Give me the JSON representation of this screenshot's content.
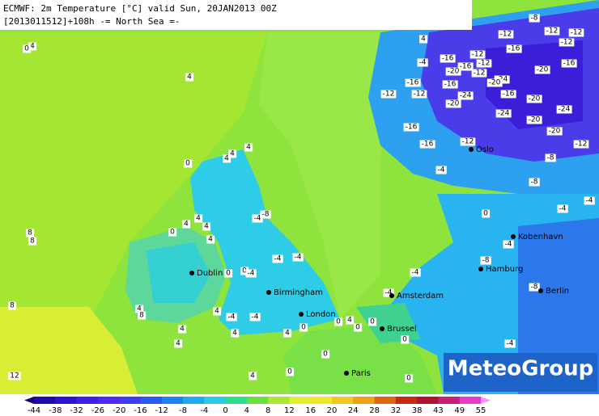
{
  "header": {
    "title": "ECMWF: 2m Temperature [°C] valid Sun, 20JAN2013 00Z",
    "subtitle": "[2013011512]+108h  -= North Sea =-"
  },
  "cities": [
    "Oslo",
    "Kobenhavn",
    "Hamburg",
    "Berlin",
    "Amsterdam",
    "Brussel",
    "Paris",
    "London",
    "Birmingham",
    "Dublin"
  ],
  "contour_labels": [
    -8,
    -12,
    -12,
    -12,
    -16,
    -12,
    -12,
    -16,
    -4,
    -12,
    -16,
    -12,
    -20,
    -16,
    -24,
    -20,
    -20,
    -16,
    -16,
    -12,
    -12,
    -24,
    -20,
    -16,
    -20,
    -24,
    -24,
    -20,
    -20,
    -16,
    -16,
    -12,
    -12,
    -8,
    -4,
    -8,
    -4,
    -4,
    0,
    -4,
    -8,
    -8,
    -4,
    -4,
    -4,
    0,
    4,
    0,
    0,
    0,
    0,
    0,
    4,
    0,
    4,
    4,
    -4,
    4,
    -4,
    0,
    -4,
    -4,
    -4,
    -4,
    -8,
    0,
    4,
    4,
    4,
    0,
    4,
    0,
    4,
    4,
    4,
    4,
    4,
    4,
    0,
    8,
    8,
    8,
    4,
    8,
    4,
    4,
    12,
    0
  ],
  "legend": {
    "ticks": [
      -44,
      -38,
      -32,
      -26,
      -20,
      -16,
      -12,
      -8,
      -4,
      0,
      4,
      8,
      12,
      16,
      20,
      24,
      28,
      32,
      38,
      43,
      49,
      55
    ],
    "colors": [
      "#14007a",
      "#1c0ca8",
      "#2a14d0",
      "#3c1ee8",
      "#5028f0",
      "#3c3cf0",
      "#285af0",
      "#1e82f0",
      "#1eaaf0",
      "#28cce6",
      "#28e08c",
      "#6ae03c",
      "#a8e830",
      "#e0f030",
      "#f0e628",
      "#f0c81e",
      "#f0a014",
      "#e06414",
      "#c82814",
      "#b0142c",
      "#c81e78",
      "#e83cc8",
      "#ff90ff"
    ]
  },
  "logo": "MeteoGroup"
}
